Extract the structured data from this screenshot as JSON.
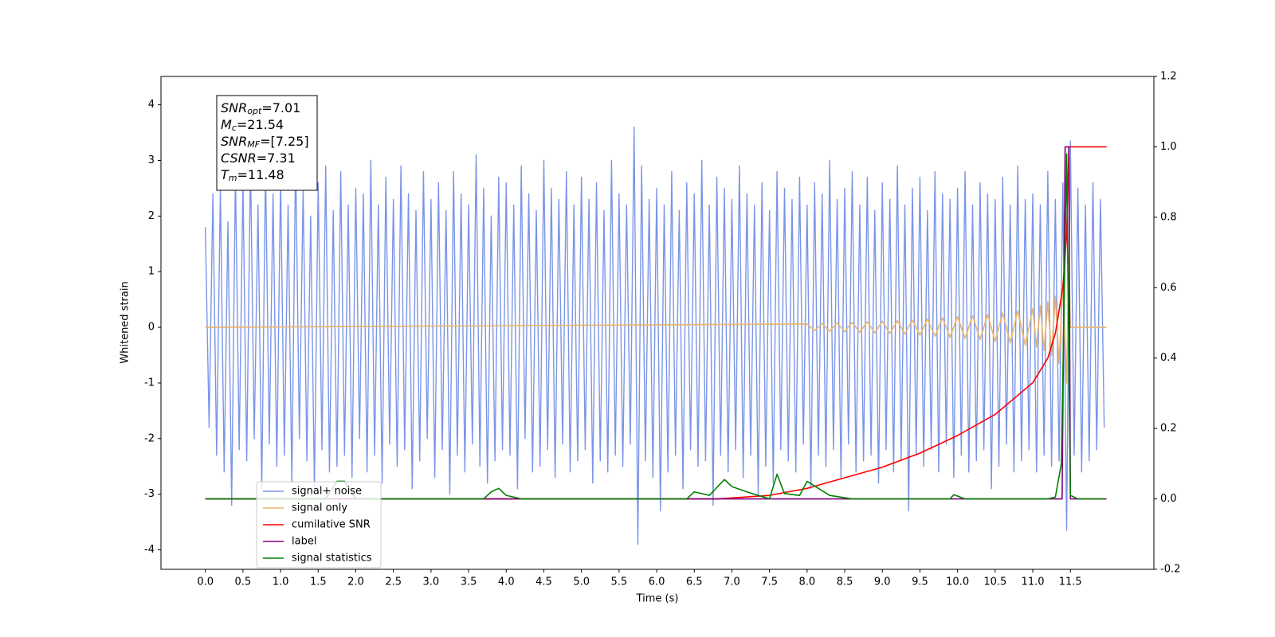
{
  "chart_data": {
    "type": "line",
    "xlabel": "Time (s)",
    "ylabel": "Whitened strain",
    "xlim": [
      -0.59,
      12.61
    ],
    "ylim": [
      -4.35,
      4.51
    ],
    "y2lim": [
      -0.2,
      1.2
    ],
    "xticks": [
      {
        "value": 0,
        "label": "0.0"
      },
      0.5,
      {
        "value": 1,
        "label": "1.0"
      },
      1.5,
      {
        "value": 2,
        "label": "2.0"
      },
      2.5,
      {
        "value": 3,
        "label": "3.0"
      },
      3.5,
      {
        "value": 4,
        "label": "4.0"
      },
      4.5,
      {
        "value": 5,
        "label": "5.0"
      },
      5.5,
      {
        "value": 6,
        "label": "6.0"
      },
      6.5,
      {
        "value": 7,
        "label": "7.0"
      },
      7.5,
      {
        "value": 8,
        "label": "8.0"
      },
      8.5,
      {
        "value": 9,
        "label": "9.0"
      },
      9.5,
      {
        "value": 10,
        "label": "10.0"
      },
      10.5,
      {
        "value": 11,
        "label": "11.0"
      },
      11.5
    ],
    "yticks": [
      -4,
      -3,
      -2,
      -1,
      0,
      1,
      2,
      3,
      4
    ],
    "y2ticks": [
      -0.2,
      {
        "value": 0,
        "label": "0.0"
      },
      0.2,
      0.4,
      0.6,
      0.8,
      {
        "value": 1,
        "label": "1.0"
      },
      1.2
    ],
    "legend": "lower left",
    "annotation": [
      {
        "base": "SNR",
        "sub": "opt",
        "rest": "=7.01"
      },
      {
        "base": "M",
        "sub": "c",
        "rest": "=21.54"
      },
      {
        "base": "SNR",
        "sub": "MF",
        "rest": "=[7.25]"
      },
      {
        "base": "CSNR",
        "sub": "",
        "rest": "=7.31"
      },
      {
        "base": "T",
        "sub": "m",
        "rest": "=11.48"
      }
    ],
    "series": [
      {
        "name": "signal+ noise",
        "color": "#7a95e8",
        "x": [
          0,
          0.05,
          0.1,
          0.15,
          0.2,
          0.25,
          0.3,
          0.35,
          0.4,
          0.45,
          0.5,
          0.55,
          0.6,
          0.65,
          0.7,
          0.75,
          0.8,
          0.85,
          0.9,
          0.95,
          1,
          1.05,
          1.1,
          1.15,
          1.2,
          1.25,
          1.3,
          1.35,
          1.4,
          1.45,
          1.5,
          1.55,
          1.6,
          1.65,
          1.7,
          1.75,
          1.8,
          1.85,
          1.9,
          1.95,
          2,
          2.05,
          2.1,
          2.15,
          2.2,
          2.25,
          2.3,
          2.35,
          2.4,
          2.45,
          2.5,
          2.55,
          2.6,
          2.65,
          2.7,
          2.75,
          2.8,
          2.85,
          2.9,
          2.95,
          3,
          3.05,
          3.1,
          3.15,
          3.2,
          3.25,
          3.3,
          3.35,
          3.4,
          3.45,
          3.5,
          3.55,
          3.6,
          3.65,
          3.7,
          3.75,
          3.8,
          3.85,
          3.9,
          3.95,
          4,
          4.05,
          4.1,
          4.15,
          4.2,
          4.25,
          4.3,
          4.35,
          4.4,
          4.45,
          4.5,
          4.55,
          4.6,
          4.65,
          4.7,
          4.75,
          4.8,
          4.85,
          4.9,
          4.95,
          5,
          5.05,
          5.1,
          5.15,
          5.2,
          5.25,
          5.3,
          5.35,
          5.4,
          5.45,
          5.5,
          5.55,
          5.6,
          5.65,
          5.7,
          5.75,
          5.8,
          5.85,
          5.9,
          5.95,
          6,
          6.05,
          6.1,
          6.15,
          6.2,
          6.25,
          6.3,
          6.35,
          6.4,
          6.45,
          6.5,
          6.55,
          6.6,
          6.65,
          6.7,
          6.75,
          6.8,
          6.85,
          6.9,
          6.95,
          7,
          7.05,
          7.1,
          7.15,
          7.2,
          7.25,
          7.3,
          7.35,
          7.4,
          7.45,
          7.5,
          7.55,
          7.6,
          7.65,
          7.7,
          7.75,
          7.8,
          7.85,
          7.9,
          7.95,
          8,
          8.05,
          8.1,
          8.15,
          8.2,
          8.25,
          8.3,
          8.35,
          8.4,
          8.45,
          8.5,
          8.55,
          8.6,
          8.65,
          8.7,
          8.75,
          8.8,
          8.85,
          8.9,
          8.95,
          9,
          9.05,
          9.1,
          9.15,
          9.2,
          9.25,
          9.3,
          9.35,
          9.4,
          9.45,
          9.5,
          9.55,
          9.6,
          9.65,
          9.7,
          9.75,
          9.8,
          9.85,
          9.9,
          9.95,
          10,
          10.05,
          10.1,
          10.15,
          10.2,
          10.25,
          10.3,
          10.35,
          10.4,
          10.45,
          10.5,
          10.55,
          10.6,
          10.65,
          10.7,
          10.75,
          10.8,
          10.85,
          10.9,
          10.95,
          11,
          11.05,
          11.1,
          11.15,
          11.2,
          11.25,
          11.3,
          11.35,
          11.4,
          11.45,
          11.5,
          11.55,
          11.6,
          11.65,
          11.7,
          11.75,
          11.8,
          11.85,
          11.9,
          11.95
        ],
        "values": [
          1.8,
          -1.8,
          2.4,
          -2.3,
          2.5,
          -2.6,
          1.9,
          -3.2,
          2.8,
          -2.2,
          2.6,
          -2.4,
          3.0,
          -2.0,
          2.2,
          -2.9,
          2.9,
          -2.1,
          2.4,
          -2.5,
          2.7,
          -2.3,
          2.2,
          -2.8,
          3.1,
          -2.0,
          2.5,
          -2.4,
          2.0,
          -2.9,
          2.6,
          -2.2,
          2.9,
          -2.6,
          2.1,
          -2.5,
          2.8,
          -2.3,
          2.2,
          -2.7,
          2.5,
          -2.0,
          2.4,
          -2.6,
          3.0,
          -2.3,
          2.2,
          -2.8,
          2.7,
          -2.1,
          2.3,
          -2.5,
          2.9,
          -2.2,
          2.4,
          -2.9,
          2.1,
          -2.4,
          2.8,
          -2.0,
          2.3,
          -2.7,
          2.6,
          -2.2,
          2.1,
          -3.0,
          2.8,
          -2.3,
          2.4,
          -2.6,
          2.2,
          -2.1,
          3.1,
          -2.5,
          2.5,
          -2.8,
          2.0,
          -2.4,
          2.7,
          -2.2,
          2.6,
          -2.3,
          2.2,
          -2.9,
          2.9,
          -2.0,
          2.4,
          -2.6,
          2.1,
          -2.5,
          3.0,
          -2.2,
          2.5,
          -2.7,
          2.3,
          -2.1,
          2.8,
          -2.6,
          2.2,
          -2.4,
          2.7,
          -2.2,
          2.3,
          -2.8,
          2.6,
          -2.4,
          2.1,
          -2.6,
          3.0,
          -2.3,
          2.4,
          -2.5,
          2.2,
          -2.1,
          3.6,
          -3.9,
          2.9,
          -2.4,
          2.3,
          -2.7,
          2.5,
          -3.3,
          2.2,
          -2.6,
          2.8,
          -2.3,
          2.1,
          -2.9,
          2.6,
          -2.2,
          2.4,
          -2.5,
          3.0,
          -2.4,
          2.2,
          -3.2,
          2.7,
          -2.3,
          2.5,
          -2.6,
          2.3,
          -2.2,
          2.9,
          -2.7,
          2.4,
          -2.3,
          2.2,
          -3.0,
          2.6,
          -2.5,
          2.1,
          -2.8,
          2.8,
          -2.2,
          2.5,
          -2.4,
          2.3,
          -2.6,
          2.7,
          -2.1,
          2.2,
          -2.9,
          2.6,
          -2.3,
          2.4,
          -2.5,
          3.0,
          -2.2,
          2.3,
          -2.7,
          2.5,
          -2.1,
          2.8,
          -2.6,
          2.2,
          -2.4,
          2.7,
          -2.3,
          2.1,
          -2.8,
          2.6,
          -2.2,
          2.3,
          -2.6,
          2.9,
          -2.4,
          2.2,
          -3.3,
          2.5,
          -2.3,
          2.7,
          -2.5,
          2.1,
          -2.2,
          2.8,
          -2.6,
          2.4,
          -2.1,
          2.3,
          -2.7,
          2.5,
          -2.3,
          2.8,
          -2.6,
          2.2,
          -2.4,
          2.6,
          -2.2,
          2.4,
          -2.9,
          2.3,
          -2.5,
          2.7,
          -2.1,
          2.2,
          -2.6,
          2.9,
          -2.4,
          2.3,
          -2.2,
          2.4,
          -2.6,
          2.2,
          -2.3,
          2.8,
          -2.5,
          2.3,
          -2.4,
          2.6,
          -3.65,
          3.35,
          -2.3,
          2.5,
          -2.6,
          2.2,
          -2.4,
          2.6,
          -2.2,
          2.3,
          -1.8
        ]
      },
      {
        "name": "signal only",
        "color": "#e9b46e",
        "x": [
          0,
          8.0,
          8.1,
          8.2,
          8.3,
          8.4,
          8.5,
          8.6,
          8.7,
          8.8,
          8.9,
          9.0,
          9.1,
          9.2,
          9.3,
          9.4,
          9.5,
          9.6,
          9.7,
          9.8,
          9.9,
          10.0,
          10.1,
          10.2,
          10.3,
          10.4,
          10.5,
          10.6,
          10.7,
          10.8,
          10.9,
          11.0,
          11.05,
          11.1,
          11.15,
          11.2,
          11.25,
          11.3,
          11.35,
          11.4,
          11.45,
          11.48,
          11.5,
          11.98
        ],
        "values": [
          0,
          0.06,
          -0.06,
          0.07,
          -0.07,
          0.08,
          -0.08,
          0.09,
          -0.09,
          0.1,
          -0.1,
          0.11,
          -0.11,
          0.12,
          -0.12,
          0.13,
          -0.14,
          0.15,
          -0.16,
          0.17,
          -0.18,
          0.19,
          -0.2,
          0.21,
          -0.22,
          0.23,
          -0.25,
          0.26,
          -0.28,
          0.3,
          -0.32,
          0.34,
          -0.36,
          0.39,
          -0.42,
          0.46,
          -0.5,
          0.56,
          -0.65,
          0.8,
          -1.0,
          1.3,
          0,
          0
        ]
      },
      {
        "name": "cumilative SNR",
        "color": "red",
        "axis": "y2",
        "x": [
          0,
          6.8,
          7.5,
          8.0,
          8.5,
          9.0,
          9.5,
          10.0,
          10.5,
          11.0,
          11.2,
          11.3,
          11.4,
          11.45,
          11.48,
          11.5,
          11.98
        ],
        "values": [
          0,
          0,
          0.01,
          0.03,
          0.06,
          0.09,
          0.13,
          0.18,
          0.24,
          0.33,
          0.4,
          0.47,
          0.6,
          0.75,
          1.0,
          1.0,
          1.0
        ]
      },
      {
        "name": "label",
        "color": "purple",
        "axis": "y2",
        "x": [
          0,
          11.39,
          11.43,
          11.48,
          11.5,
          11.98
        ],
        "values": [
          0,
          0,
          1.0,
          1.0,
          0,
          0
        ]
      },
      {
        "name": "signal statistics",
        "color": "green",
        "axis": "y2",
        "x": [
          0,
          1.6,
          1.75,
          1.85,
          2.0,
          3.7,
          3.8,
          3.9,
          4.0,
          4.2,
          6.4,
          6.5,
          6.7,
          6.9,
          7.0,
          7.2,
          7.5,
          7.6,
          7.7,
          7.9,
          8.0,
          8.3,
          8.6,
          9.9,
          9.95,
          10.1,
          11.2,
          11.3,
          11.38,
          11.42,
          11.45,
          11.5,
          11.6,
          11.95
        ],
        "values": [
          0,
          0,
          0.05,
          0.05,
          0,
          0,
          0.02,
          0.03,
          0.01,
          0,
          0,
          0.02,
          0.01,
          0.055,
          0.035,
          0.02,
          0,
          0.07,
          0.015,
          0.01,
          0.05,
          0.01,
          0,
          0,
          0.012,
          0,
          0,
          0.005,
          0.1,
          0.6,
          0.98,
          0.01,
          0,
          0
        ]
      }
    ]
  }
}
